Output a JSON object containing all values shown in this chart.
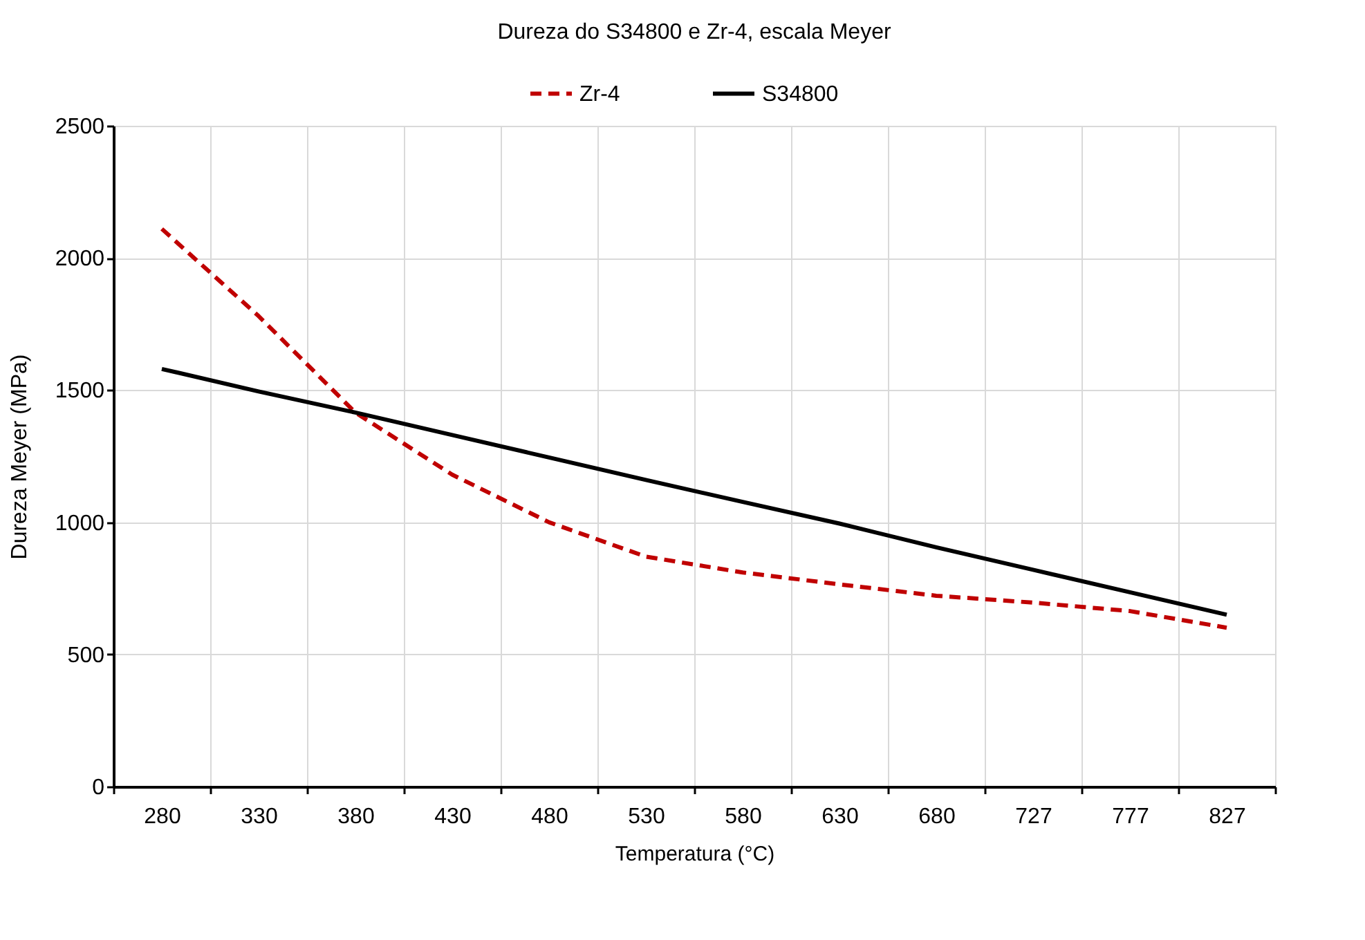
{
  "chart_data": {
    "type": "line",
    "title": "Dureza  do S34800 e Zr-4, escala Meyer",
    "xlabel": "Temperatura (°C)",
    "ylabel": "Dureza Meyer (MPa)",
    "categories": [
      "280",
      "330",
      "380",
      "430",
      "480",
      "530",
      "580",
      "630",
      "680",
      "727",
      "777",
      "827"
    ],
    "series": [
      {
        "name": "Zr-4",
        "color": "#c00000",
        "line_style": "dashed",
        "values": [
          2110,
          1780,
          1415,
          1180,
          1000,
          870,
          810,
          765,
          722,
          696,
          664,
          601
        ]
      },
      {
        "name": "S34800",
        "color": "#000000",
        "line_style": "solid",
        "values": [
          1580,
          1495,
          1415,
          1330,
          1245,
          1160,
          1077,
          995,
          905,
          820,
          735,
          650
        ]
      }
    ],
    "ylim": [
      0,
      2500
    ],
    "yticks": [
      0,
      500,
      1000,
      1500,
      2000,
      2500
    ],
    "grid": true,
    "legend": "top",
    "marker": "none"
  }
}
